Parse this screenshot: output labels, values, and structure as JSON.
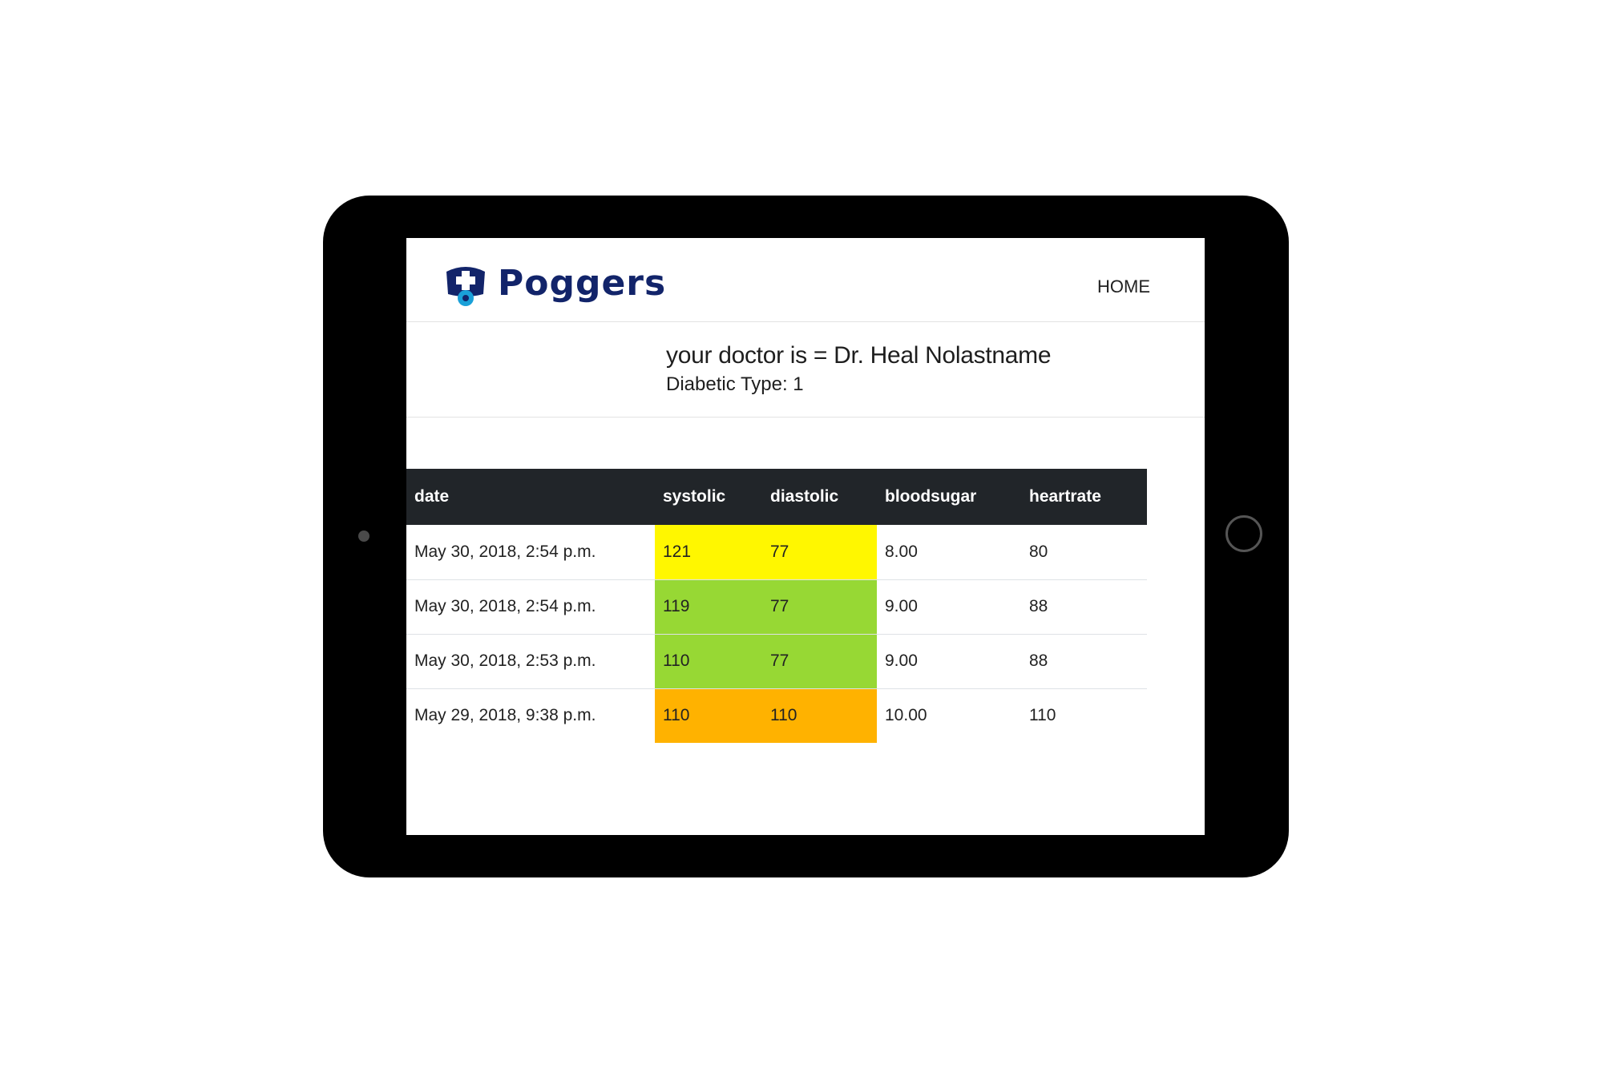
{
  "brand": {
    "name": "Poggers",
    "logo_icon": "nurse-cap-stethoscope-icon",
    "color": "#12246a"
  },
  "nav": {
    "home_label": "HOME"
  },
  "patient": {
    "doctor_line": "your doctor is = Dr. Heal Nolastname",
    "diabetic_line": "Diabetic Type: 1"
  },
  "table": {
    "headers": {
      "date": "date",
      "systolic": "systolic",
      "diastolic": "diastolic",
      "bloodsugar": "bloodsugar",
      "heartrate": "heartrate"
    },
    "header_bg": "#212529",
    "rows": [
      {
        "date": "May 30, 2018, 2:54 p.m.",
        "systolic": "121",
        "diastolic": "77",
        "bloodsugar": "8.00",
        "heartrate": "80",
        "status_color": "#fff700"
      },
      {
        "date": "May 30, 2018, 2:54 p.m.",
        "systolic": "119",
        "diastolic": "77",
        "bloodsugar": "9.00",
        "heartrate": "88",
        "status_color": "#97d834"
      },
      {
        "date": "May 30, 2018, 2:53 p.m.",
        "systolic": "110",
        "diastolic": "77",
        "bloodsugar": "9.00",
        "heartrate": "88",
        "status_color": "#97d834"
      },
      {
        "date": "May 29, 2018, 9:38 p.m.",
        "systolic": "110",
        "diastolic": "110",
        "bloodsugar": "10.00",
        "heartrate": "110",
        "status_color": "#ffb200"
      }
    ]
  }
}
